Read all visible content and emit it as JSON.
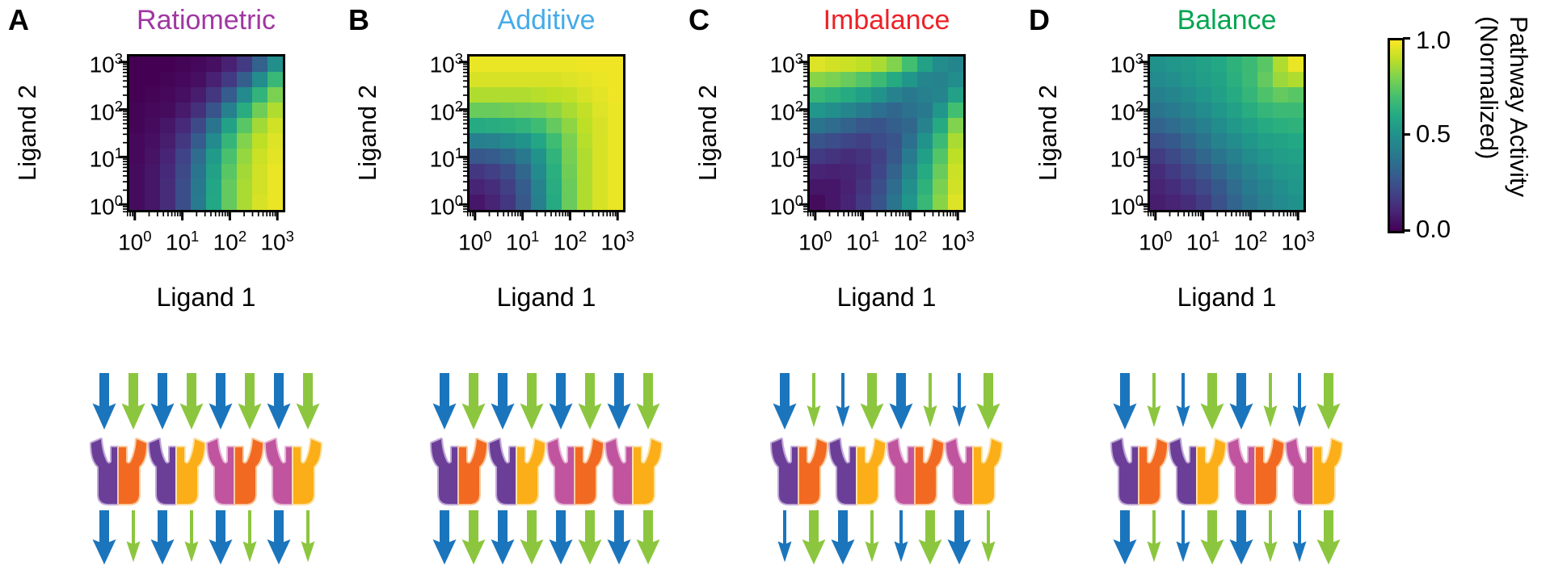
{
  "panels": [
    {
      "letter": "A",
      "title": "Ratiometric",
      "title_color": "#A136A3",
      "xlabel": "Ligand 1",
      "ylabel": "Ligand 2",
      "axis": {
        "base": "10",
        "exponents": [
          "0",
          "1",
          "2",
          "3"
        ]
      },
      "arrows_in": [
        "blue-thick",
        "green-thick",
        "blue-thick",
        "green-thick",
        "blue-thick",
        "green-thick",
        "blue-thick",
        "green-thick"
      ],
      "arrows_out": [
        "blue-thick",
        "green-thin",
        "blue-thick",
        "green-thin",
        "blue-thick",
        "green-thin",
        "blue-thick",
        "green-thin"
      ],
      "receptor_dimers": [
        [
          "purple",
          "orange"
        ],
        [
          "purple",
          "amber"
        ],
        [
          "magenta",
          "orange"
        ],
        [
          "magenta",
          "amber"
        ]
      ]
    },
    {
      "letter": "B",
      "title": "Additive",
      "title_color": "#45ABE9",
      "xlabel": "Ligand 1",
      "ylabel": "Ligand 2",
      "axis": {
        "base": "10",
        "exponents": [
          "0",
          "1",
          "2",
          "3"
        ]
      },
      "arrows_in": [
        "blue-thick",
        "green-thick",
        "blue-thick",
        "green-thick",
        "blue-thick",
        "green-thick",
        "blue-thick",
        "green-thick"
      ],
      "arrows_out": [
        "blue-thick",
        "green-thick",
        "blue-thick",
        "green-thick",
        "blue-thick",
        "green-thick",
        "blue-thick",
        "green-thick"
      ],
      "receptor_dimers": [
        [
          "purple",
          "orange"
        ],
        [
          "purple",
          "amber"
        ],
        [
          "magenta",
          "orange"
        ],
        [
          "magenta",
          "amber"
        ]
      ]
    },
    {
      "letter": "C",
      "title": "Imbalance",
      "title_color": "#EC2227",
      "xlabel": "Ligand 1",
      "ylabel": "Ligand 2",
      "axis": {
        "base": "10",
        "exponents": [
          "0",
          "1",
          "2",
          "3"
        ]
      },
      "arrows_in": [
        "blue-thick",
        "green-thin",
        "blue-thin",
        "green-thick",
        "blue-thick",
        "green-thin",
        "blue-thin",
        "green-thick"
      ],
      "arrows_out": [
        "blue-thin",
        "green-thick",
        "blue-thick",
        "green-thin",
        "blue-thin",
        "green-thick",
        "blue-thick",
        "green-thin"
      ],
      "receptor_dimers": [
        [
          "purple",
          "orange"
        ],
        [
          "purple",
          "amber"
        ],
        [
          "magenta",
          "orange"
        ],
        [
          "magenta",
          "amber"
        ]
      ]
    },
    {
      "letter": "D",
      "title": "Balance",
      "title_color": "#00A550",
      "xlabel": "Ligand 1",
      "ylabel": "Ligand 2",
      "axis": {
        "base": "10",
        "exponents": [
          "0",
          "1",
          "2",
          "3"
        ]
      },
      "arrows_in": [
        "blue-thick",
        "green-thin",
        "blue-thin",
        "green-thick",
        "blue-thick",
        "green-thin",
        "blue-thin",
        "green-thick"
      ],
      "arrows_out": [
        "blue-thick",
        "green-thin",
        "blue-thin",
        "green-thick",
        "blue-thick",
        "green-thin",
        "blue-thin",
        "green-thick"
      ],
      "receptor_dimers": [
        [
          "purple",
          "orange"
        ],
        [
          "purple",
          "amber"
        ],
        [
          "magenta",
          "orange"
        ],
        [
          "magenta",
          "amber"
        ]
      ]
    }
  ],
  "colorbar": {
    "tick_labels": [
      "1.0",
      "0.5",
      "0.0"
    ],
    "tick_values": [
      1.0,
      0.5,
      0.0
    ],
    "label_line1": "Pathway Activity",
    "label_line2": "(Normalized)",
    "colormap": "viridis"
  },
  "palette": {
    "arrow_blue": "#1B75BC",
    "arrow_green": "#8CC63F",
    "receptors": {
      "purple": {
        "fill": "#6B3E98",
        "outline": "#BFA8D5"
      },
      "orange": {
        "fill": "#F26A21",
        "outline": "#FACBA0"
      },
      "magenta": {
        "fill": "#C0549F",
        "outline": "#E4B4D4"
      },
      "amber": {
        "fill": "#FBAE17",
        "outline": "#FDE2A4"
      }
    }
  },
  "chart_data": [
    {
      "type": "heatmap",
      "panel": "A",
      "title": "Ratiometric",
      "xlabel": "Ligand 1",
      "ylabel": "Ligand 2",
      "x_scale": "log",
      "y_scale": "log",
      "x": [
        1,
        2.2,
        4.6,
        10,
        22,
        46,
        100,
        220,
        460,
        1000
      ],
      "y": [
        1,
        2.2,
        4.6,
        10,
        22,
        46,
        100,
        220,
        460,
        1000
      ],
      "row_order": "values[0] is the bottom row (lowest Ligand 2)",
      "zlim": [
        0,
        1
      ],
      "colormap": "viridis",
      "values": [
        [
          0.03,
          0.06,
          0.13,
          0.24,
          0.41,
          0.6,
          0.76,
          0.87,
          0.94,
          0.97
        ],
        [
          0.03,
          0.06,
          0.13,
          0.24,
          0.4,
          0.59,
          0.76,
          0.87,
          0.93,
          0.97
        ],
        [
          0.03,
          0.06,
          0.12,
          0.22,
          0.38,
          0.57,
          0.74,
          0.86,
          0.93,
          0.97
        ],
        [
          0.02,
          0.05,
          0.1,
          0.2,
          0.35,
          0.54,
          0.71,
          0.84,
          0.92,
          0.96
        ],
        [
          0.02,
          0.04,
          0.08,
          0.16,
          0.29,
          0.47,
          0.66,
          0.81,
          0.9,
          0.95
        ],
        [
          0.01,
          0.03,
          0.06,
          0.12,
          0.22,
          0.38,
          0.57,
          0.74,
          0.86,
          0.93
        ],
        [
          0.01,
          0.02,
          0.03,
          0.07,
          0.14,
          0.26,
          0.43,
          0.62,
          0.78,
          0.88
        ],
        [
          0.0,
          0.01,
          0.02,
          0.04,
          0.08,
          0.16,
          0.29,
          0.47,
          0.65,
          0.8
        ],
        [
          0.0,
          0.0,
          0.01,
          0.02,
          0.04,
          0.09,
          0.17,
          0.3,
          0.48,
          0.67
        ],
        [
          0.0,
          0.0,
          0.0,
          0.01,
          0.02,
          0.04,
          0.09,
          0.17,
          0.31,
          0.49
        ]
      ]
    },
    {
      "type": "heatmap",
      "panel": "B",
      "title": "Additive",
      "xlabel": "Ligand 1",
      "ylabel": "Ligand 2",
      "x_scale": "log",
      "y_scale": "log",
      "x": [
        1,
        2.2,
        4.6,
        10,
        22,
        46,
        100,
        220,
        460,
        1000
      ],
      "y": [
        1,
        2.2,
        4.6,
        10,
        22,
        46,
        100,
        220,
        460,
        1000
      ],
      "row_order": "values[0] is the bottom row (lowest Ligand 2)",
      "zlim": [
        0,
        1
      ],
      "colormap": "viridis",
      "values": [
        [
          0.06,
          0.1,
          0.16,
          0.27,
          0.43,
          0.61,
          0.77,
          0.88,
          0.94,
          0.97
        ],
        [
          0.1,
          0.13,
          0.19,
          0.29,
          0.44,
          0.62,
          0.77,
          0.88,
          0.94,
          0.97
        ],
        [
          0.16,
          0.19,
          0.24,
          0.33,
          0.47,
          0.63,
          0.78,
          0.88,
          0.94,
          0.97
        ],
        [
          0.27,
          0.29,
          0.33,
          0.4,
          0.51,
          0.65,
          0.79,
          0.88,
          0.94,
          0.97
        ],
        [
          0.43,
          0.44,
          0.47,
          0.51,
          0.59,
          0.69,
          0.8,
          0.89,
          0.94,
          0.97
        ],
        [
          0.61,
          0.62,
          0.63,
          0.65,
          0.69,
          0.76,
          0.83,
          0.9,
          0.94,
          0.97
        ],
        [
          0.77,
          0.77,
          0.78,
          0.79,
          0.8,
          0.83,
          0.87,
          0.91,
          0.95,
          0.97
        ],
        [
          0.88,
          0.88,
          0.88,
          0.88,
          0.89,
          0.9,
          0.91,
          0.94,
          0.96,
          0.98
        ],
        [
          0.94,
          0.94,
          0.94,
          0.94,
          0.94,
          0.94,
          0.95,
          0.96,
          0.97,
          0.98
        ],
        [
          0.97,
          0.97,
          0.97,
          0.97,
          0.97,
          0.97,
          0.97,
          0.98,
          0.98,
          0.98
        ]
      ]
    },
    {
      "type": "heatmap",
      "panel": "C",
      "title": "Imbalance",
      "xlabel": "Ligand 1",
      "ylabel": "Ligand 2",
      "x_scale": "log",
      "y_scale": "log",
      "x": [
        1,
        2.2,
        4.6,
        10,
        22,
        46,
        100,
        220,
        460,
        1000
      ],
      "y": [
        1,
        2.2,
        4.6,
        10,
        22,
        46,
        100,
        220,
        460,
        1000
      ],
      "row_order": "values[0] is the bottom row (lowest Ligand 2)",
      "zlim": [
        0,
        1
      ],
      "colormap": "viridis",
      "values": [
        [
          0.03,
          0.06,
          0.1,
          0.17,
          0.26,
          0.38,
          0.52,
          0.67,
          0.82,
          0.95
        ],
        [
          0.06,
          0.06,
          0.09,
          0.15,
          0.24,
          0.35,
          0.49,
          0.64,
          0.8,
          0.93
        ],
        [
          0.1,
          0.09,
          0.1,
          0.13,
          0.21,
          0.31,
          0.45,
          0.61,
          0.77,
          0.92
        ],
        [
          0.17,
          0.15,
          0.13,
          0.15,
          0.19,
          0.27,
          0.41,
          0.56,
          0.73,
          0.9
        ],
        [
          0.26,
          0.24,
          0.21,
          0.19,
          0.23,
          0.26,
          0.36,
          0.51,
          0.68,
          0.87
        ],
        [
          0.38,
          0.35,
          0.31,
          0.27,
          0.26,
          0.3,
          0.33,
          0.44,
          0.61,
          0.81
        ],
        [
          0.52,
          0.49,
          0.45,
          0.41,
          0.36,
          0.33,
          0.37,
          0.4,
          0.52,
          0.7
        ],
        [
          0.67,
          0.64,
          0.61,
          0.56,
          0.51,
          0.44,
          0.4,
          0.43,
          0.45,
          0.57
        ],
        [
          0.82,
          0.8,
          0.77,
          0.73,
          0.68,
          0.61,
          0.52,
          0.45,
          0.44,
          0.48
        ],
        [
          0.95,
          0.93,
          0.92,
          0.9,
          0.87,
          0.81,
          0.7,
          0.57,
          0.48,
          0.45
        ]
      ]
    },
    {
      "type": "heatmap",
      "panel": "D",
      "title": "Balance",
      "xlabel": "Ligand 1",
      "ylabel": "Ligand 2",
      "x_scale": "log",
      "y_scale": "log",
      "x": [
        1,
        2.2,
        4.6,
        10,
        22,
        46,
        100,
        220,
        460,
        1000
      ],
      "y": [
        1,
        2.2,
        4.6,
        10,
        22,
        46,
        100,
        220,
        460,
        1000
      ],
      "row_order": "values[0] is the bottom row (lowest Ligand 2)",
      "zlim": [
        0,
        1
      ],
      "colormap": "viridis",
      "values": [
        [
          0.08,
          0.1,
          0.13,
          0.18,
          0.25,
          0.32,
          0.38,
          0.43,
          0.47,
          0.5
        ],
        [
          0.1,
          0.13,
          0.17,
          0.22,
          0.28,
          0.35,
          0.41,
          0.45,
          0.49,
          0.52
        ],
        [
          0.13,
          0.17,
          0.22,
          0.27,
          0.33,
          0.39,
          0.44,
          0.48,
          0.52,
          0.54
        ],
        [
          0.18,
          0.22,
          0.27,
          0.33,
          0.38,
          0.43,
          0.48,
          0.52,
          0.55,
          0.57
        ],
        [
          0.25,
          0.28,
          0.33,
          0.38,
          0.44,
          0.48,
          0.52,
          0.56,
          0.58,
          0.6
        ],
        [
          0.32,
          0.35,
          0.39,
          0.43,
          0.48,
          0.53,
          0.57,
          0.61,
          0.63,
          0.64
        ],
        [
          0.38,
          0.41,
          0.44,
          0.48,
          0.52,
          0.57,
          0.62,
          0.66,
          0.68,
          0.68
        ],
        [
          0.43,
          0.45,
          0.48,
          0.52,
          0.56,
          0.61,
          0.66,
          0.72,
          0.76,
          0.74
        ],
        [
          0.47,
          0.49,
          0.52,
          0.55,
          0.58,
          0.63,
          0.68,
          0.76,
          0.85,
          0.88
        ],
        [
          0.5,
          0.52,
          0.54,
          0.57,
          0.6,
          0.64,
          0.68,
          0.74,
          0.88,
          0.97
        ]
      ]
    }
  ]
}
